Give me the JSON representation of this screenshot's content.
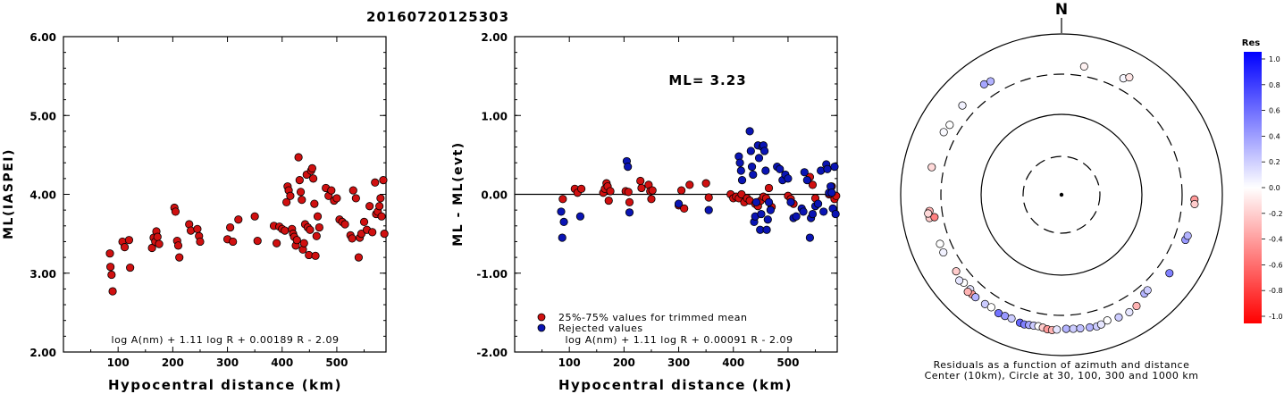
{
  "page_title": "20160720125303",
  "chart_data": [
    {
      "type": "scatter",
      "ylabel": "ML(IASPEI)",
      "xlabel": "Hypocentral distance (km)",
      "xlim": [
        0,
        590
      ],
      "ylim": [
        2.0,
        6.0
      ],
      "x_ticks": [
        "100",
        "200",
        "300",
        "400",
        "500"
      ],
      "y_ticks": [
        "2.00",
        "3.00",
        "4.00",
        "5.00",
        "6.00"
      ],
      "formula": "log A(nm) + 1.11 log R + 0.00189 R - 2.09",
      "series": [
        {
          "color": "#d01010",
          "points": [
            [
              85,
              3.25
            ],
            [
              86,
              3.08
            ],
            [
              88,
              2.98
            ],
            [
              90,
              2.77
            ],
            [
              108,
              3.4
            ],
            [
              112,
              3.33
            ],
            [
              120,
              3.42
            ],
            [
              122,
              3.07
            ],
            [
              162,
              3.32
            ],
            [
              165,
              3.45
            ],
            [
              168,
              3.4
            ],
            [
              170,
              3.53
            ],
            [
              172,
              3.46
            ],
            [
              175,
              3.37
            ],
            [
              203,
              3.83
            ],
            [
              205,
              3.78
            ],
            [
              208,
              3.41
            ],
            [
              210,
              3.35
            ],
            [
              212,
              3.2
            ],
            [
              230,
              3.62
            ],
            [
              233,
              3.54
            ],
            [
              245,
              3.56
            ],
            [
              248,
              3.47
            ],
            [
              250,
              3.4
            ],
            [
              300,
              3.43
            ],
            [
              305,
              3.58
            ],
            [
              310,
              3.4
            ],
            [
              320,
              3.68
            ],
            [
              350,
              3.72
            ],
            [
              355,
              3.41
            ],
            [
              385,
              3.6
            ],
            [
              390,
              3.38
            ],
            [
              395,
              3.59
            ],
            [
              400,
              3.56
            ],
            [
              405,
              3.54
            ],
            [
              408,
              3.9
            ],
            [
              410,
              4.1
            ],
            [
              412,
              4.05
            ],
            [
              415,
              3.98
            ],
            [
              418,
              3.56
            ],
            [
              420,
              3.5
            ],
            [
              422,
              3.46
            ],
            [
              425,
              3.35
            ],
            [
              427,
              3.42
            ],
            [
              430,
              4.47
            ],
            [
              432,
              4.18
            ],
            [
              434,
              4.03
            ],
            [
              436,
              3.93
            ],
            [
              438,
              3.3
            ],
            [
              440,
              3.38
            ],
            [
              442,
              3.62
            ],
            [
              445,
              4.25
            ],
            [
              447,
              3.58
            ],
            [
              449,
              3.23
            ],
            [
              451,
              3.55
            ],
            [
              453,
              4.3
            ],
            [
              455,
              4.33
            ],
            [
              457,
              4.2
            ],
            [
              459,
              3.88
            ],
            [
              461,
              3.22
            ],
            [
              463,
              3.47
            ],
            [
              465,
              3.72
            ],
            [
              468,
              3.58
            ],
            [
              480,
              4.08
            ],
            [
              485,
              3.98
            ],
            [
              490,
              4.05
            ],
            [
              495,
              3.92
            ],
            [
              500,
              3.95
            ],
            [
              505,
              3.68
            ],
            [
              510,
              3.65
            ],
            [
              515,
              3.62
            ],
            [
              525,
              3.48
            ],
            [
              528,
              3.44
            ],
            [
              530,
              4.05
            ],
            [
              535,
              3.95
            ],
            [
              540,
              3.2
            ],
            [
              542,
              3.45
            ],
            [
              545,
              3.5
            ],
            [
              550,
              3.65
            ],
            [
              555,
              3.55
            ],
            [
              560,
              3.85
            ],
            [
              565,
              3.52
            ],
            [
              570,
              4.15
            ],
            [
              572,
              3.75
            ],
            [
              575,
              3.78
            ],
            [
              578,
              3.85
            ],
            [
              580,
              3.95
            ],
            [
              582,
              3.72
            ],
            [
              585,
              4.18
            ],
            [
              587,
              3.5
            ]
          ]
        }
      ]
    },
    {
      "type": "scatter",
      "ylabel": "ML - ML(evt)",
      "xlabel": "Hypocentral distance (km)",
      "xlim": [
        0,
        590
      ],
      "ylim": [
        -2.0,
        2.0
      ],
      "x_ticks": [
        "100",
        "200",
        "300",
        "400",
        "500"
      ],
      "y_ticks": [
        "-2.00",
        "-1.00",
        "0.00",
        "1.00",
        "2.00"
      ],
      "annotation": "ML= 3.23",
      "formula": "log A(nm) + 1.11 log R + 0.00091 R - 2.09",
      "legend": [
        "25%-75% values for trimmed mean",
        "Rejected values"
      ],
      "series": [
        {
          "name": "25%-75% values for trimmed mean",
          "color": "#d01010",
          "points": [
            [
              88,
              -0.06
            ],
            [
              110,
              0.07
            ],
            [
              115,
              0.02
            ],
            [
              122,
              0.07
            ],
            [
              162,
              0.02
            ],
            [
              165,
              0.07
            ],
            [
              168,
              0.14
            ],
            [
              170,
              0.1
            ],
            [
              172,
              -0.08
            ],
            [
              175,
              0.04
            ],
            [
              203,
              0.04
            ],
            [
              208,
              0.03
            ],
            [
              210,
              -0.1
            ],
            [
              230,
              0.17
            ],
            [
              232,
              0.08
            ],
            [
              245,
              0.12
            ],
            [
              248,
              0.04
            ],
            [
              250,
              -0.06
            ],
            [
              252,
              0.05
            ],
            [
              300,
              -0.14
            ],
            [
              305,
              0.05
            ],
            [
              310,
              -0.18
            ],
            [
              320,
              0.12
            ],
            [
              350,
              0.14
            ],
            [
              355,
              -0.04
            ],
            [
              395,
              0.0
            ],
            [
              400,
              -0.05
            ],
            [
              405,
              -0.03
            ],
            [
              410,
              -0.05
            ],
            [
              415,
              0.0
            ],
            [
              420,
              -0.1
            ],
            [
              425,
              -0.05
            ],
            [
              430,
              -0.08
            ],
            [
              440,
              -0.12
            ],
            [
              445,
              -0.15
            ],
            [
              450,
              -0.08
            ],
            [
              455,
              -0.03
            ],
            [
              460,
              -0.05
            ],
            [
              465,
              0.08
            ],
            [
              470,
              -0.16
            ],
            [
              500,
              -0.02
            ],
            [
              505,
              -0.06
            ],
            [
              510,
              -0.12
            ],
            [
              540,
              0.22
            ],
            [
              545,
              0.12
            ],
            [
              550,
              -0.05
            ],
            [
              575,
              0.0
            ],
            [
              580,
              0.1
            ],
            [
              585,
              -0.06
            ],
            [
              588,
              -0.02
            ]
          ]
        },
        {
          "name": "Rejected values",
          "color": "#0a14b4",
          "points": [
            [
              85,
              -0.22
            ],
            [
              87,
              -0.55
            ],
            [
              90,
              -0.35
            ],
            [
              120,
              -0.28
            ],
            [
              205,
              0.42
            ],
            [
              207,
              0.35
            ],
            [
              210,
              -0.23
            ],
            [
              300,
              -0.12
            ],
            [
              355,
              -0.2
            ],
            [
              410,
              0.48
            ],
            [
              412,
              0.4
            ],
            [
              414,
              0.3
            ],
            [
              416,
              0.18
            ],
            [
              430,
              0.8
            ],
            [
              432,
              0.55
            ],
            [
              434,
              0.35
            ],
            [
              436,
              0.25
            ],
            [
              438,
              -0.35
            ],
            [
              440,
              -0.28
            ],
            [
              442,
              -0.1
            ],
            [
              445,
              0.62
            ],
            [
              447,
              0.46
            ],
            [
              449,
              -0.45
            ],
            [
              451,
              -0.25
            ],
            [
              453,
              0.6
            ],
            [
              455,
              0.62
            ],
            [
              457,
              0.55
            ],
            [
              459,
              0.3
            ],
            [
              461,
              -0.45
            ],
            [
              463,
              -0.32
            ],
            [
              465,
              -0.1
            ],
            [
              468,
              -0.2
            ],
            [
              480,
              0.35
            ],
            [
              485,
              0.32
            ],
            [
              490,
              0.18
            ],
            [
              495,
              0.25
            ],
            [
              500,
              0.2
            ],
            [
              505,
              -0.1
            ],
            [
              510,
              -0.3
            ],
            [
              515,
              -0.28
            ],
            [
              525,
              -0.18
            ],
            [
              528,
              -0.22
            ],
            [
              530,
              0.28
            ],
            [
              535,
              0.18
            ],
            [
              540,
              -0.55
            ],
            [
              542,
              -0.3
            ],
            [
              545,
              -0.25
            ],
            [
              550,
              -0.15
            ],
            [
              555,
              -0.12
            ],
            [
              560,
              0.3
            ],
            [
              565,
              -0.22
            ],
            [
              570,
              0.38
            ],
            [
              572,
              0.32
            ],
            [
              575,
              0.02
            ],
            [
              578,
              0.1
            ],
            [
              580,
              0.02
            ],
            [
              582,
              -0.18
            ],
            [
              585,
              0.35
            ],
            [
              587,
              -0.25
            ]
          ]
        }
      ]
    },
    {
      "type": "polar_scatter",
      "north_label": "N",
      "caption": [
        "Residuals as a function of azimuth and distance",
        "Center (10km), Circle at 30, 100, 300 and 1000 km"
      ],
      "colorbar": {
        "title": "Res",
        "ticks": [
          "1.0",
          "0.8",
          "0.6",
          "0.4",
          "0.2",
          "0.0",
          "-0.2",
          "-0.4",
          "-0.6",
          "-0.8",
          "-1.0"
        ],
        "max_color": "#0000ff",
        "mid_color": "#ffffff",
        "min_color": "#ff0000"
      },
      "points": [
        [
          -35,
          460,
          0.35
        ],
        [
          -32,
          445,
          0.3
        ],
        [
          10,
          400,
          -0.05
        ],
        [
          28,
          420,
          0.03
        ],
        [
          30,
          470,
          -0.1
        ],
        [
          -48,
          440,
          0.05
        ],
        [
          -58,
          420,
          0.0
        ],
        [
          -62,
          440,
          0.02
        ],
        [
          -78,
          430,
          -0.15
        ],
        [
          -97,
          435,
          -0.3
        ],
        [
          -100,
          448,
          -0.2
        ],
        [
          -98,
          457,
          -0.15
        ],
        [
          -100,
          385,
          -0.5
        ],
        [
          -112,
          410,
          0.0
        ],
        [
          -116,
          415,
          0.05
        ],
        [
          -126,
          400,
          -0.2
        ],
        [
          -132,
          415,
          0.0
        ],
        [
          -136,
          415,
          0.1
        ],
        [
          -130,
          440,
          0.1
        ],
        [
          -138,
          445,
          -0.4
        ],
        [
          -136,
          460,
          -0.3
        ],
        [
          -140,
          445,
          0.3
        ],
        [
          -145,
          440,
          0.2
        ],
        [
          -148,
          430,
          0.0
        ],
        [
          -152,
          450,
          0.55
        ],
        [
          -155,
          445,
          0.4
        ],
        [
          -158,
          440,
          0.2
        ],
        [
          -162,
          455,
          0.6
        ],
        [
          -164,
          460,
          0.5
        ],
        [
          -166,
          450,
          0.35
        ],
        [
          -168,
          445,
          0.2
        ],
        [
          -170,
          440,
          0.0
        ],
        [
          -172,
          450,
          -0.2
        ],
        [
          -174,
          465,
          -0.4
        ],
        [
          -176,
          470,
          -0.3
        ],
        [
          -178,
          460,
          0.1
        ],
        [
          178,
          450,
          0.3
        ],
        [
          175,
          455,
          0.2
        ],
        [
          172,
          460,
          0.25
        ],
        [
          168,
          470,
          0.3
        ],
        [
          165,
          480,
          0.2
        ],
        [
          163,
          470,
          0.1
        ],
        [
          160,
          445,
          0.0
        ],
        [
          155,
          465,
          0.2
        ],
        [
          150,
          470,
          0.1
        ],
        [
          146,
          450,
          -0.3
        ],
        [
          140,
          385,
          0.3
        ],
        [
          138,
          380,
          0.2
        ],
        [
          126,
          440,
          0.5
        ],
        [
          110,
          420,
          0.4
        ],
        [
          108,
          430,
          0.3
        ],
        [
          92,
          435,
          -0.4
        ],
        [
          94,
          440,
          -0.2
        ]
      ]
    }
  ]
}
